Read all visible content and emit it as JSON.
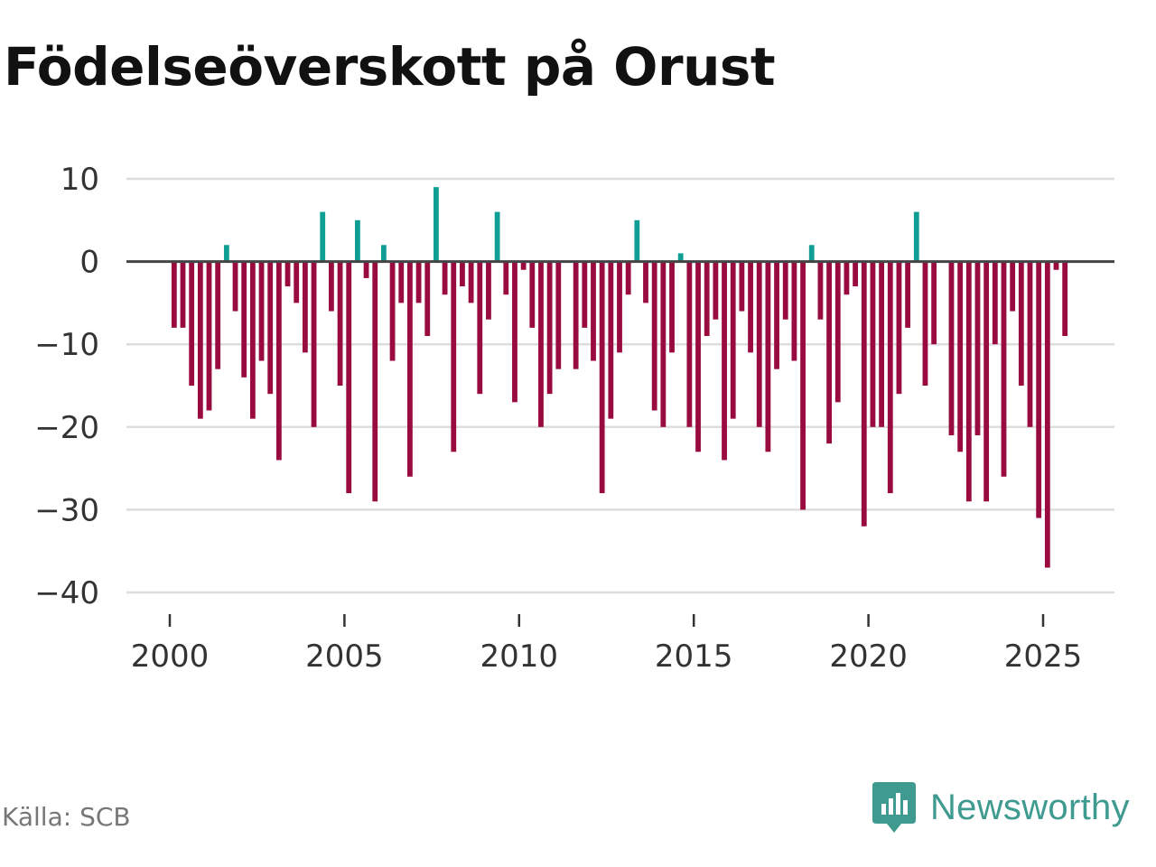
{
  "title": "Födelseöverskott på Orust",
  "source": "Källa: SCB",
  "brand": {
    "name": "Newsworthy",
    "icon": "newsworthy-logo-icon"
  },
  "colors": {
    "positive": "#0f9e94",
    "negative": "#990a3f",
    "grid": "#dddddd",
    "zero": "#444444",
    "brand": "#3f9a90"
  },
  "chart_data": {
    "type": "bar",
    "title": "Födelseöverskott på Orust",
    "xlabel": "",
    "ylabel": "",
    "ylim": [
      -40,
      10
    ],
    "yticks": [
      10,
      0,
      -10,
      -20,
      -30,
      -40
    ],
    "ytick_labels": [
      "10",
      "0",
      "−10",
      "−20",
      "−30",
      "−40"
    ],
    "xticks": [
      2000,
      2005,
      2010,
      2015,
      2020,
      2025
    ],
    "xtick_labels": [
      "2000",
      "2005",
      "2010",
      "2015",
      "2020",
      "2025"
    ],
    "frequency": "quarterly",
    "start": "2000Q1",
    "values": [
      -8,
      -8,
      -15,
      -19,
      -18,
      -13,
      2,
      -6,
      -14,
      -19,
      -12,
      -16,
      -24,
      -3,
      -5,
      -11,
      -20,
      6,
      -6,
      -15,
      -28,
      5,
      -2,
      -29,
      2,
      -12,
      -5,
      -26,
      -5,
      -9,
      9,
      -4,
      -23,
      -3,
      -5,
      -16,
      -7,
      6,
      -4,
      -17,
      -1,
      -8,
      -20,
      -16,
      -13,
      0,
      -13,
      -8,
      -12,
      -28,
      -19,
      -11,
      -4,
      5,
      -5,
      -18,
      -20,
      -11,
      1,
      -20,
      -23,
      -9,
      -7,
      -24,
      -19,
      -6,
      -11,
      -20,
      -23,
      -13,
      -7,
      -12,
      -30,
      2,
      -7,
      -22,
      -17,
      -4,
      -3,
      -32,
      -20,
      -20,
      -28,
      -16,
      -8,
      6,
      -15,
      -10,
      0,
      -21,
      -23,
      -29,
      -21,
      -29,
      -10,
      -26,
      -6,
      -15,
      -20,
      -31,
      -37,
      -1,
      -9
    ]
  }
}
